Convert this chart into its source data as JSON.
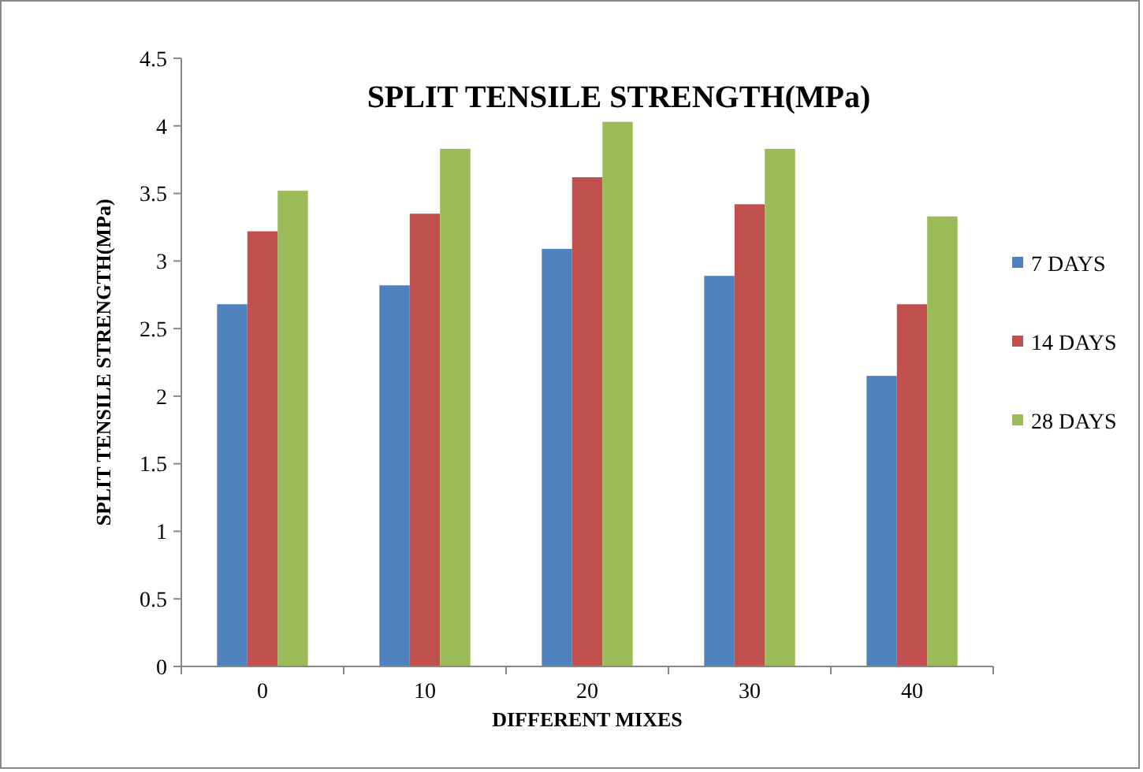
{
  "chart_data": {
    "type": "bar",
    "title": "SPLIT TENSILE STRENGTH(MPa)",
    "xlabel": "DIFFERENT MIXES",
    "ylabel": "SPLIT TENSILE STRENGTH(MPa)",
    "categories": [
      "0",
      "10",
      "20",
      "30",
      "40"
    ],
    "series": [
      {
        "name": "7 DAYS",
        "color": "#4f81bd",
        "values": [
          2.68,
          2.82,
          3.09,
          2.89,
          2.15
        ]
      },
      {
        "name": "14 DAYS",
        "color": "#c0504d",
        "values": [
          3.22,
          3.35,
          3.62,
          3.42,
          2.68
        ]
      },
      {
        "name": "28 DAYS",
        "color": "#9bbb59",
        "values": [
          3.52,
          3.83,
          4.03,
          3.83,
          3.33
        ]
      }
    ],
    "ylim": [
      0,
      4.5
    ],
    "yticks": [
      0,
      0.5,
      1,
      1.5,
      2,
      2.5,
      3,
      3.5,
      4,
      4.5
    ],
    "grid": false,
    "legend": "right"
  }
}
